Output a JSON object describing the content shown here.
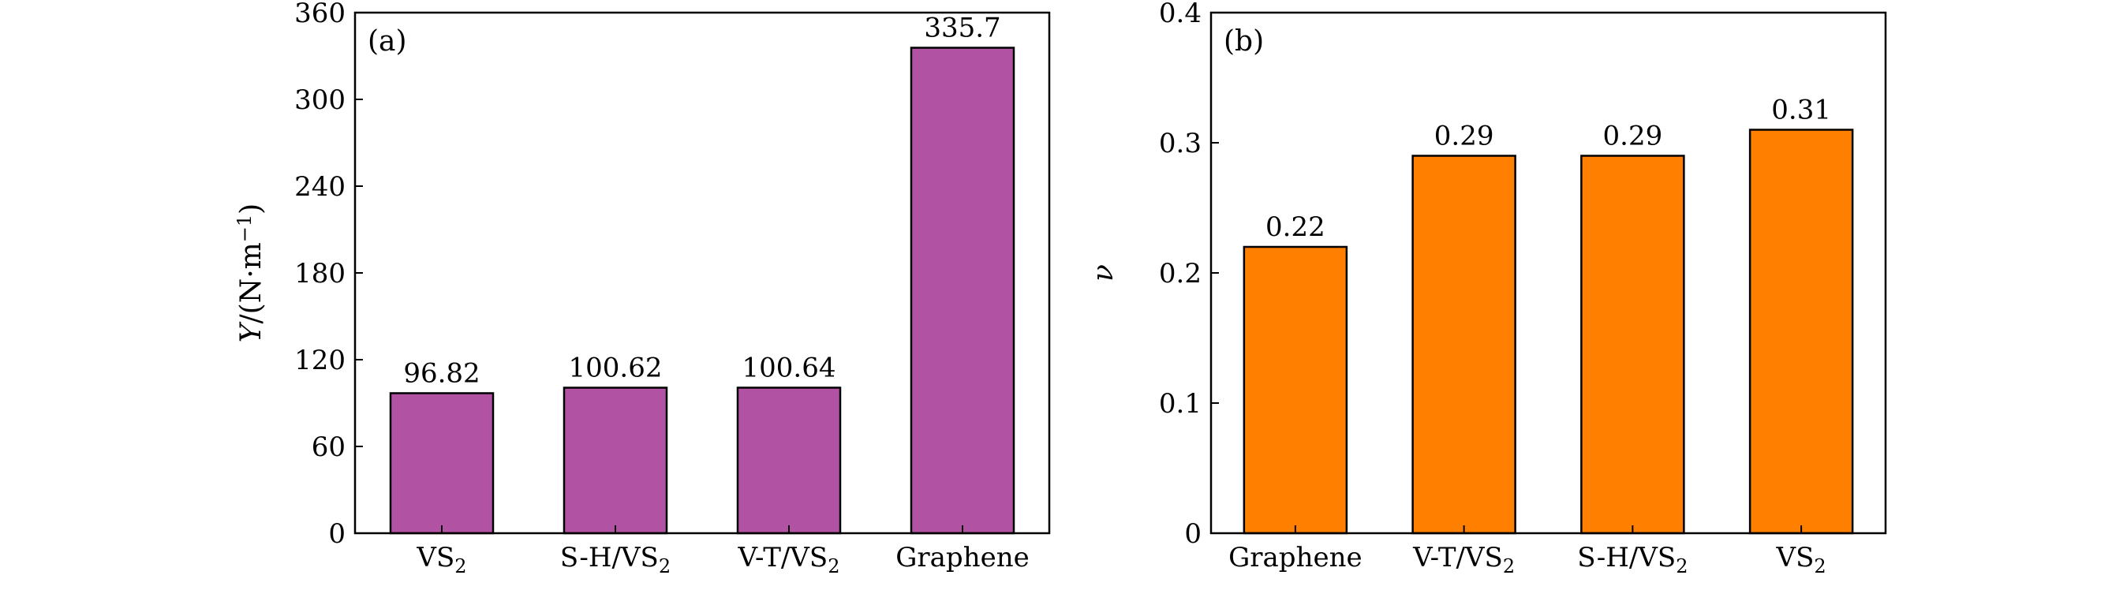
{
  "chart_data": [
    {
      "type": "bar",
      "panel_label": "(a)",
      "categories": [
        {
          "main": "VS",
          "sub": "2"
        },
        {
          "main": "S-H/VS",
          "sub": "2"
        },
        {
          "main": "V-T/VS",
          "sub": "2"
        },
        {
          "main": "Graphene",
          "sub": ""
        }
      ],
      "values": [
        96.82,
        100.62,
        100.64,
        335.7
      ],
      "value_labels": [
        "96.82",
        "100.62",
        "100.64",
        "335.7"
      ],
      "ylabel": {
        "pre": "Y/(N·m",
        "sup": "−1",
        "post": ")"
      },
      "ylim": [
        0,
        360
      ],
      "yticks": [
        0,
        60,
        120,
        180,
        240,
        300,
        360
      ],
      "ytick_labels": [
        "0",
        "60",
        "120",
        "180",
        "240",
        "300",
        "360"
      ],
      "bar_color": "#b252a2"
    },
    {
      "type": "bar",
      "panel_label": "(b)",
      "categories": [
        {
          "main": "Graphene",
          "sub": ""
        },
        {
          "main": "V-T/VS",
          "sub": "2"
        },
        {
          "main": "S-H/VS",
          "sub": "2"
        },
        {
          "main": "VS",
          "sub": "2"
        }
      ],
      "values": [
        0.22,
        0.29,
        0.29,
        0.31
      ],
      "value_labels": [
        "0.22",
        "0.29",
        "0.29",
        "0.31"
      ],
      "ylabel": {
        "pre": "ν",
        "sup": "",
        "post": ""
      },
      "ylim": [
        0,
        0.4
      ],
      "yticks": [
        0,
        0.1,
        0.2,
        0.3,
        0.4
      ],
      "ytick_labels": [
        "0",
        "0.1",
        "0.2",
        "0.3",
        "0.4"
      ],
      "bar_color": "#ff7f00"
    }
  ]
}
